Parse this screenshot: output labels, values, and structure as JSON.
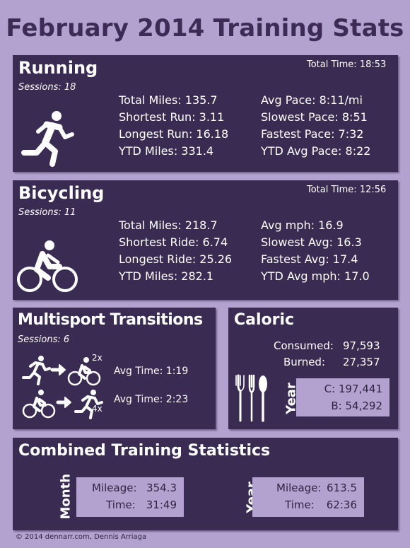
{
  "title": "February 2014 Training Stats",
  "running": {
    "title": "Running",
    "sessions": "Sessions: 18",
    "total_time": "Total Time: 18:53",
    "left": [
      "Total Miles: 135.7",
      "Shortest Run: 3.11",
      "Longest Run: 16.18",
      "YTD Miles: 331.4"
    ],
    "right": [
      "Avg Pace: 8:11/mi",
      "Slowest Pace: 8:51",
      "Fastest Pace: 7:32",
      "YTD Avg Pace: 8:22"
    ],
    "icon": "runner-icon"
  },
  "bicycling": {
    "title": "Bicycling",
    "sessions": "Sessions: 11",
    "total_time": "Total Time: 12:56",
    "left": [
      "Total Miles: 218.7",
      "Shortest Ride: 6.74",
      "Longest Ride: 25.26",
      "YTD Miles: 282.1"
    ],
    "right": [
      "Avg mph: 16.9",
      "Slowest Avg: 16.3",
      "Fastest Avg: 17.4",
      "YTD Avg mph: 17.0"
    ],
    "icon": "cyclist-icon"
  },
  "multisport": {
    "title": "Multisport Transitions",
    "sessions": "Sessions: 6",
    "t1_count": "2x",
    "t1_avg": "Avg Time: 1:19",
    "t2_count": "4x",
    "t2_avg": "Avg Time: 2:23"
  },
  "caloric": {
    "title": "Caloric",
    "consumed_label": "Consumed:",
    "consumed_value": "97,593",
    "burned_label": "Burned:",
    "burned_value": "27,357",
    "year_label": "Year",
    "year_c": "C: 197,441",
    "year_b": "B: 54,292",
    "icon": "utensils-icon"
  },
  "combined": {
    "title": "Combined Training Statistics",
    "month_label": "Month",
    "month_mileage_label": "Mileage:",
    "month_mileage": "354.3",
    "month_time_label": "Time:",
    "month_time": "31:49",
    "year_label": "Year",
    "year_mileage_label": "Mileage:",
    "year_mileage": "613.5",
    "year_time_label": "Time:",
    "year_time": "62:36"
  },
  "footer": "© 2014 dennarr.com, Dennis Arriaga",
  "colors": {
    "background": "#b3a2cf",
    "panel": "#3a2b52",
    "title": "#3d2a55"
  }
}
